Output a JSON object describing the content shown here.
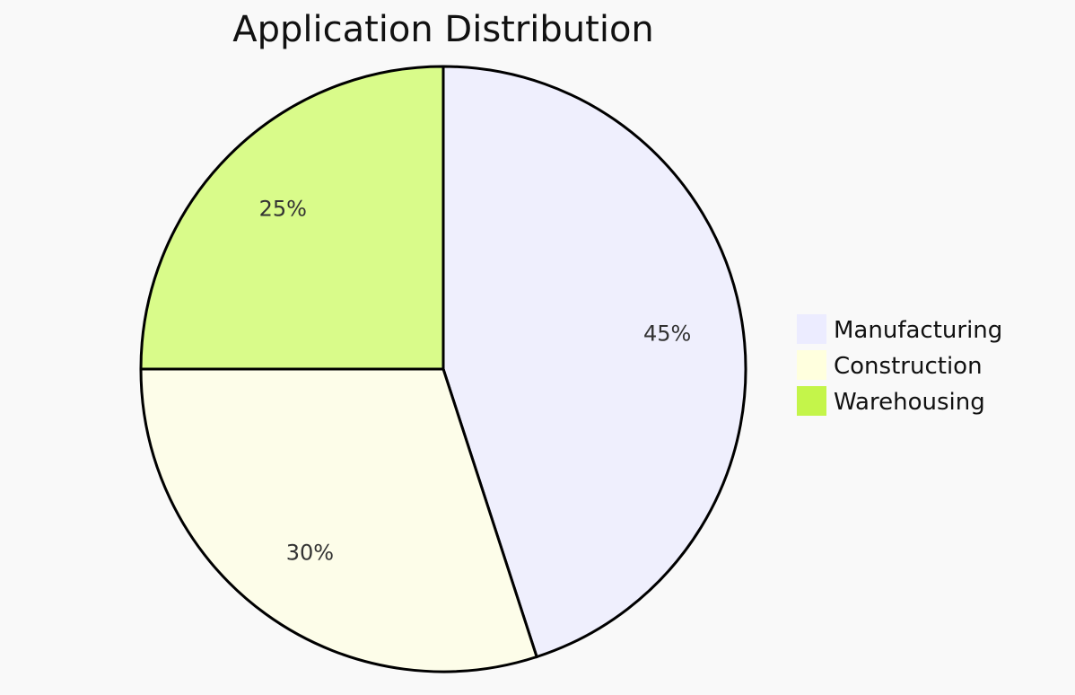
{
  "chart_data": {
    "type": "pie",
    "title": "Application Distribution",
    "slices": [
      {
        "label": "Manufacturing",
        "value": 45,
        "display": "45%",
        "color": "#efeffd",
        "legend_color": "#ececff"
      },
      {
        "label": "Construction",
        "value": 30,
        "display": "30%",
        "color": "#fdfde9",
        "legend_color": "#ffffde"
      },
      {
        "label": "Warehousing",
        "value": 25,
        "display": "25%",
        "color": "#d9fb8a",
        "legend_color": "#c4f54a"
      }
    ],
    "legend_position": "right",
    "start": "top",
    "direction": "clockwise"
  }
}
